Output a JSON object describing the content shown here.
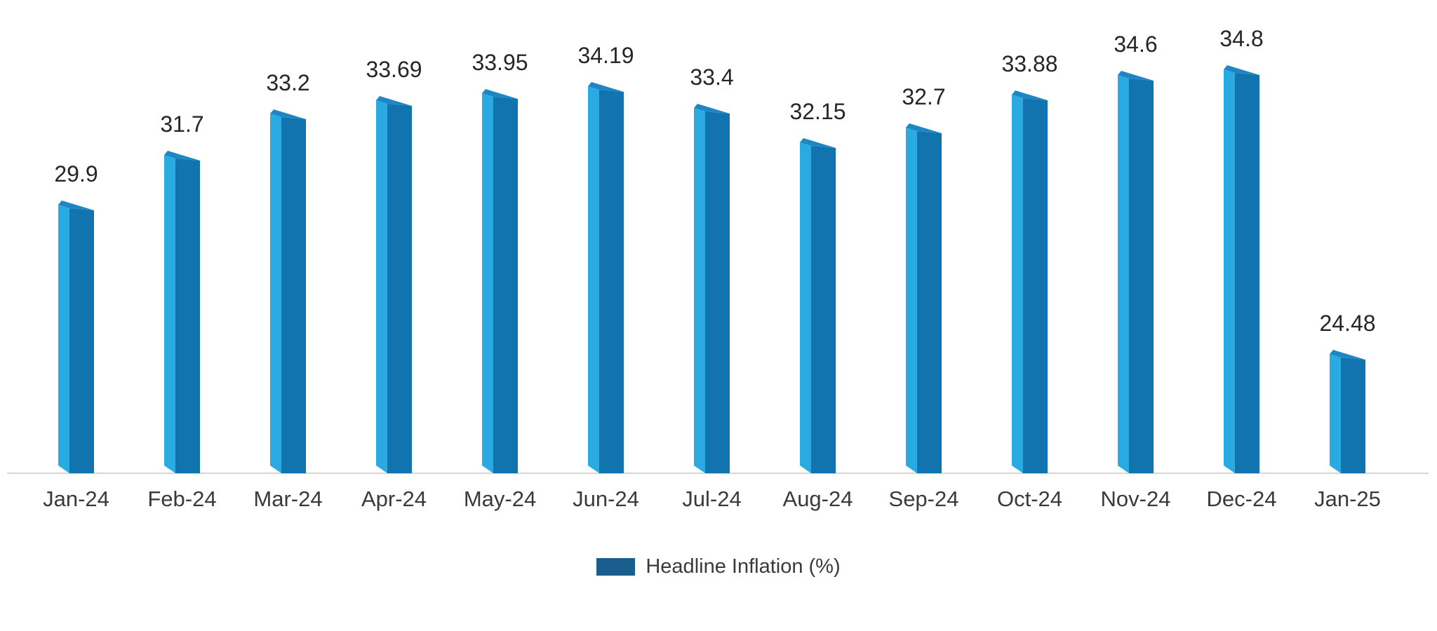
{
  "chart_data": {
    "type": "bar",
    "style": "3d-column",
    "title": "",
    "xlabel": "",
    "ylabel": "",
    "categories": [
      "Jan-24",
      "Feb-24",
      "Mar-24",
      "Apr-24",
      "May-24",
      "Jun-24",
      "Jul-24",
      "Aug-24",
      "Sep-24",
      "Oct-24",
      "Nov-24",
      "Dec-24",
      "Jan-25"
    ],
    "series": [
      {
        "name": "Headline Inflation (%)",
        "values": [
          29.9,
          31.7,
          33.2,
          33.69,
          33.95,
          34.19,
          33.4,
          32.15,
          32.7,
          33.88,
          34.6,
          34.8,
          24.48
        ],
        "labels": [
          "29.9",
          "31.7",
          "33.2",
          "33.69",
          "33.95",
          "34.19",
          "33.4",
          "32.15",
          "32.7",
          "33.88",
          "34.6",
          "34.8",
          "24.48"
        ]
      }
    ],
    "ylim": [
      20,
      36
    ],
    "grid": false,
    "y_axis_visible": false,
    "legend_position": "bottom-center",
    "colors": {
      "bar_front": "#1274AF",
      "bar_side": "#29ABE2",
      "bar_top": "#1E86C5",
      "legend_swatch": "#1A5E8D",
      "axis_line": "#D6D6D6",
      "value_label_text": "#262626",
      "category_text": "#3A3A3A"
    }
  },
  "legend": {
    "label": "Headline Inflation (%)"
  }
}
